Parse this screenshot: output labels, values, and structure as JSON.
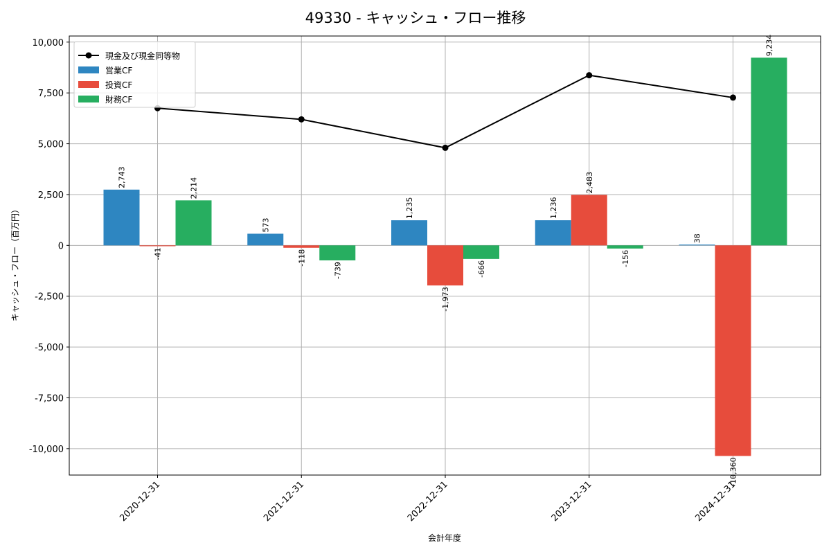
{
  "chart_data": {
    "type": "bar",
    "title": "49330 - キャッシュ・フロー推移",
    "xlabel": "会計年度",
    "ylabel": "キャッシュ・フロー（百万円）",
    "categories": [
      "2020-12-31",
      "2021-12-31",
      "2022-12-31",
      "2023-12-31",
      "2024-12-31"
    ],
    "ylim": [
      -11300,
      10300
    ],
    "yticks": [
      10000,
      7500,
      5000,
      2500,
      0,
      -2500,
      -5000,
      -7500,
      -10000
    ],
    "ytick_labels": [
      "10,000",
      "7,500",
      "5,000",
      "2,500",
      "0",
      "-2,500",
      "-5,000",
      "-7,500",
      "-10,000"
    ],
    "grid": true,
    "legend_position": "top-left",
    "series": [
      {
        "name": "営業CF",
        "color": "#2e86c1",
        "values": [
          2743,
          573,
          1235,
          1236,
          38
        ],
        "labels": [
          "2,743",
          "573",
          "1,235",
          "1,236",
          "38"
        ]
      },
      {
        "name": "投資CF",
        "color": "#e74c3c",
        "values": [
          -41,
          -118,
          -1973,
          2483,
          -10360
        ],
        "labels": [
          "-41",
          "-118",
          "-1,973",
          "2,483",
          "-10,360"
        ]
      },
      {
        "name": "財務CF",
        "color": "#27ae60",
        "values": [
          2214,
          -739,
          -666,
          -156,
          9234
        ],
        "labels": [
          "2,214",
          "-739",
          "-666",
          "-156",
          "9,234"
        ]
      }
    ],
    "line_series": {
      "name": "現金及び現金同等物",
      "color": "#000000",
      "values": [
        6750,
        6200,
        4800,
        8370,
        7270
      ]
    }
  }
}
